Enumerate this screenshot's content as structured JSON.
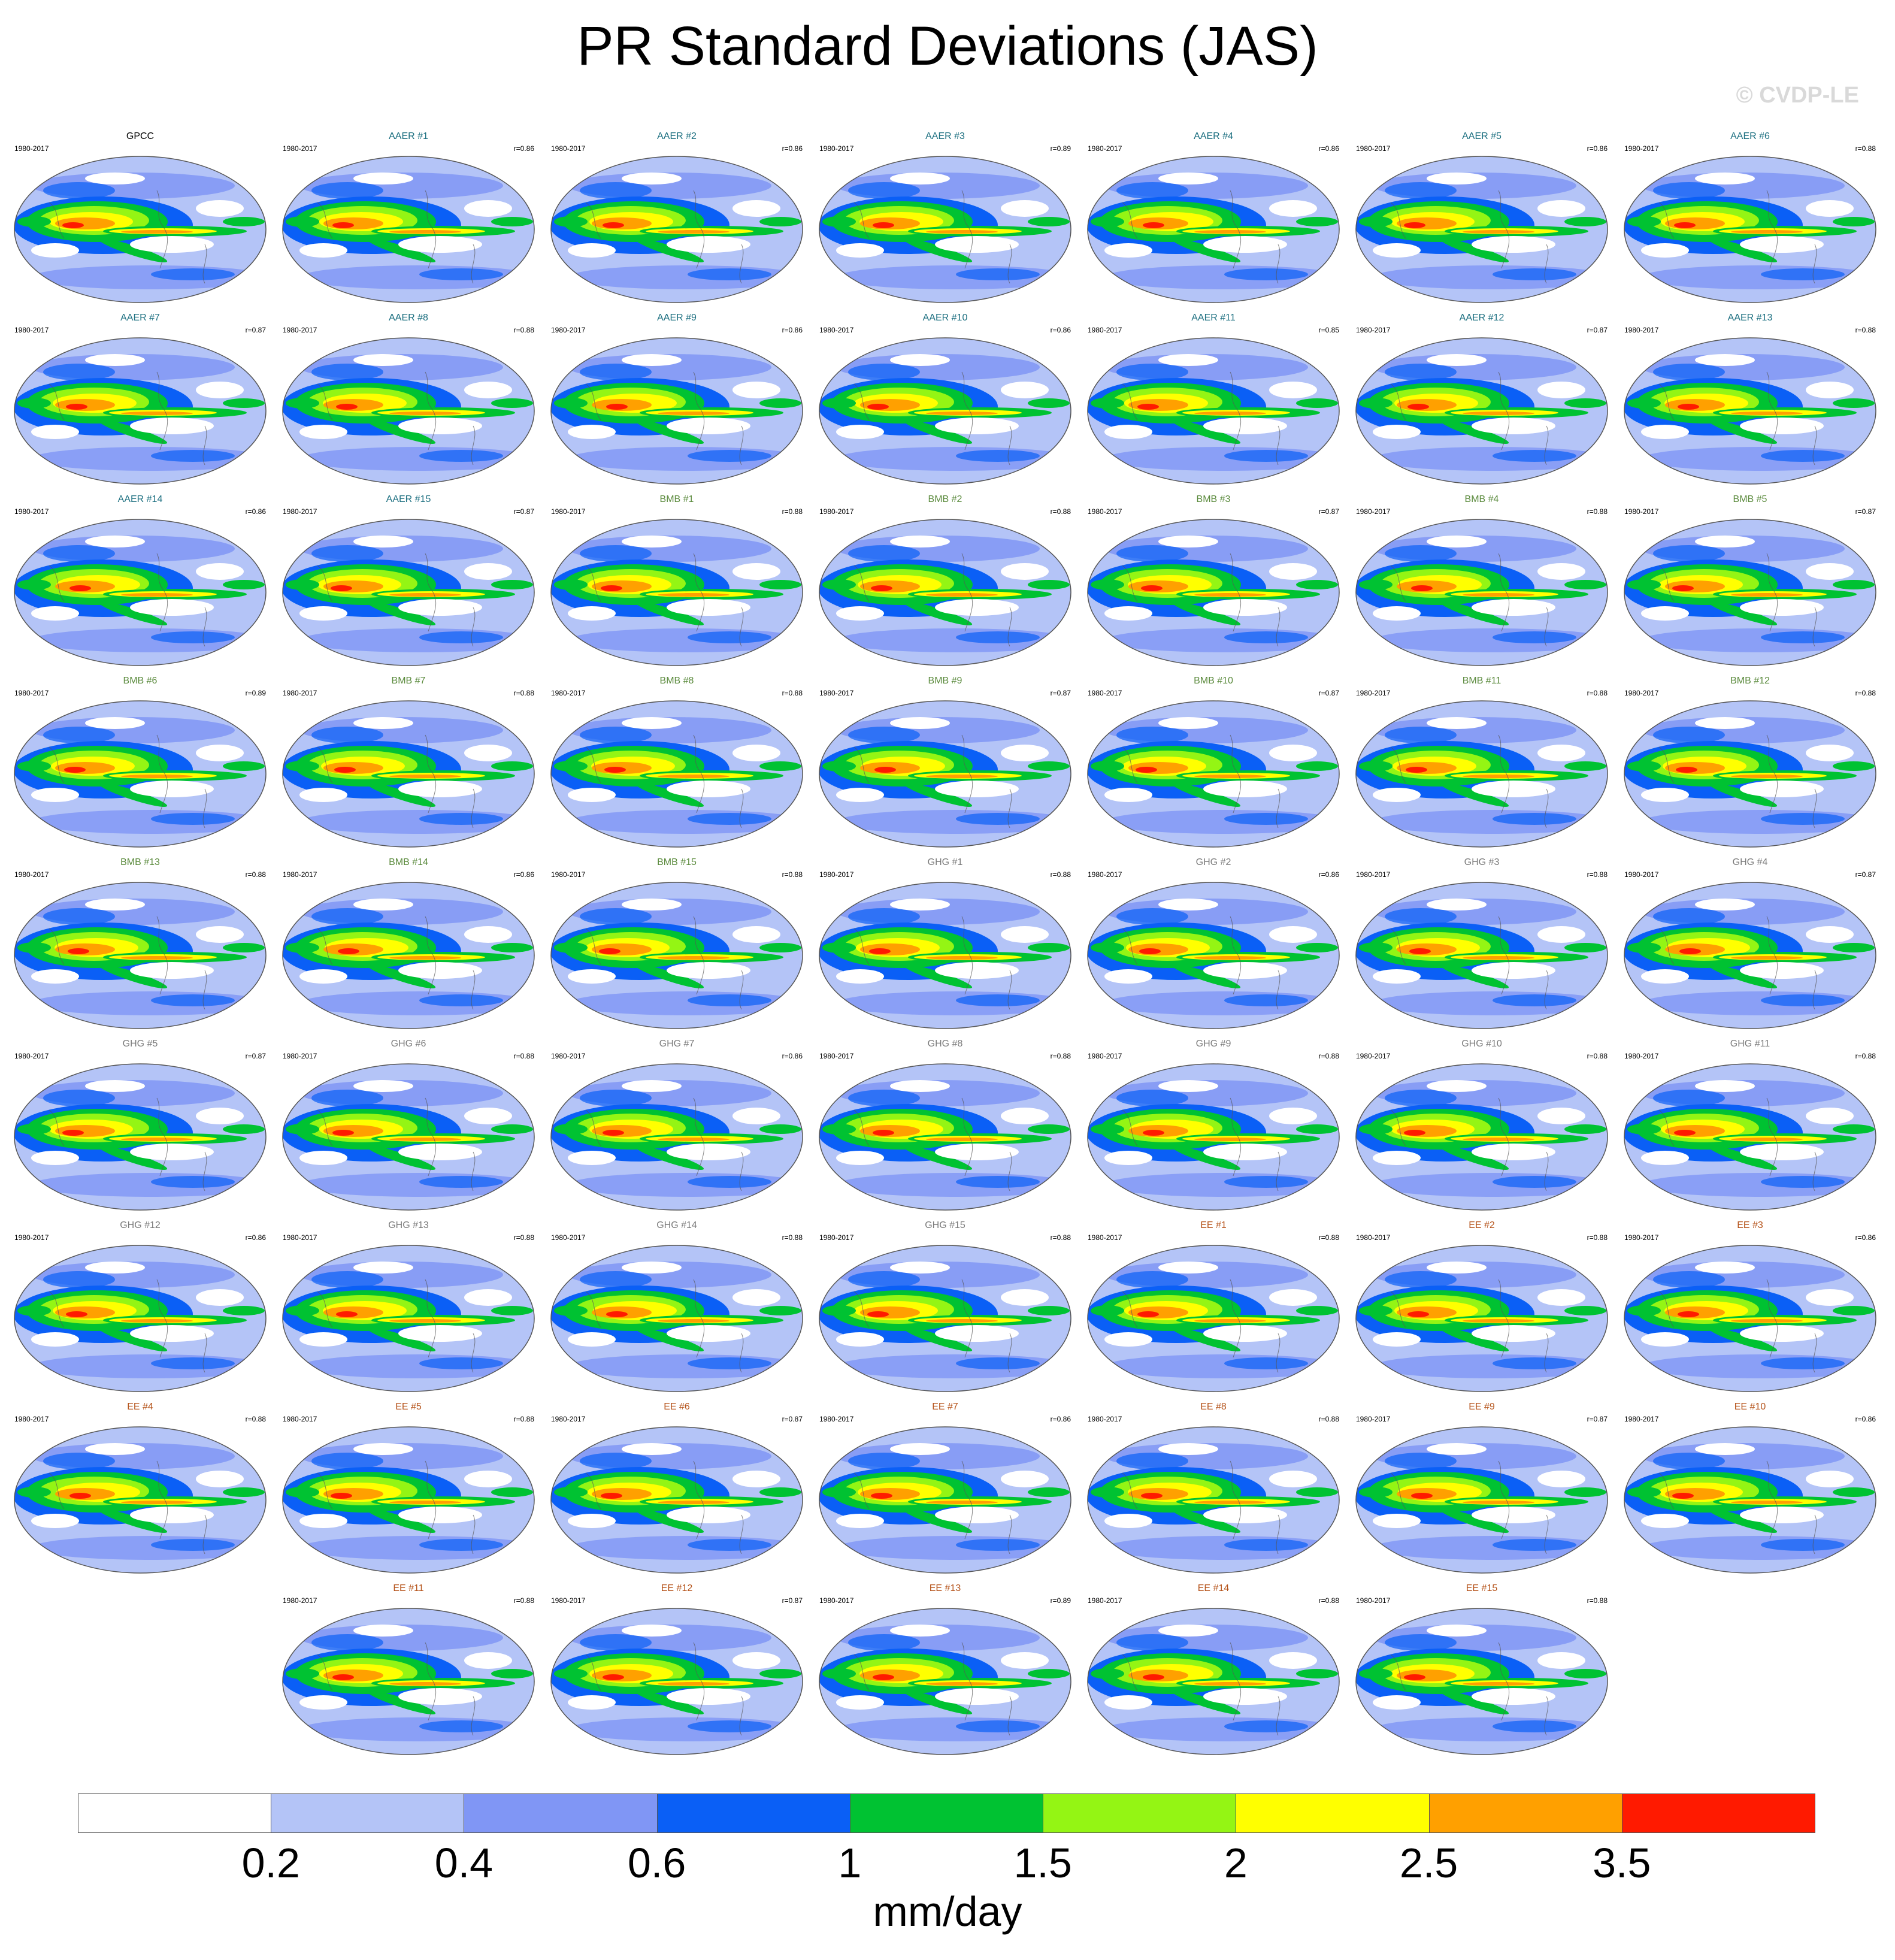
{
  "title": "PR Standard Deviations (JAS)",
  "credit": "© CVDP-LE",
  "units": "mm/day",
  "colorbar": {
    "colors": [
      "#ffffff",
      "#b4c4f7",
      "#8096f5",
      "#0a5ff6",
      "#00c232",
      "#94f514",
      "#ffff00",
      "#ffa000",
      "#ff1a00"
    ],
    "ticks": [
      "0.2",
      "0.4",
      "0.6",
      "1",
      "1.5",
      "2",
      "2.5",
      "3.5"
    ]
  },
  "group_colors": {
    "GPCC": "#000000",
    "AAER": "#1c6f80",
    "BMB": "#5a8a3c",
    "GHG": "#7b7b7b",
    "EE": "#b5531a"
  },
  "panels": [
    {
      "label": "GPCC",
      "group": "GPCC",
      "years": "1980-2017",
      "r": ""
    },
    {
      "label": "AAER #1",
      "group": "AAER",
      "years": "1980-2017",
      "r": "r=0.86"
    },
    {
      "label": "AAER #2",
      "group": "AAER",
      "years": "1980-2017",
      "r": "r=0.86"
    },
    {
      "label": "AAER #3",
      "group": "AAER",
      "years": "1980-2017",
      "r": "r=0.89"
    },
    {
      "label": "AAER #4",
      "group": "AAER",
      "years": "1980-2017",
      "r": "r=0.86"
    },
    {
      "label": "AAER #5",
      "group": "AAER",
      "years": "1980-2017",
      "r": "r=0.86"
    },
    {
      "label": "AAER #6",
      "group": "AAER",
      "years": "1980-2017",
      "r": "r=0.88"
    },
    {
      "label": "AAER #7",
      "group": "AAER",
      "years": "1980-2017",
      "r": "r=0.87"
    },
    {
      "label": "AAER #8",
      "group": "AAER",
      "years": "1980-2017",
      "r": "r=0.88"
    },
    {
      "label": "AAER #9",
      "group": "AAER",
      "years": "1980-2017",
      "r": "r=0.86"
    },
    {
      "label": "AAER #10",
      "group": "AAER",
      "years": "1980-2017",
      "r": "r=0.86"
    },
    {
      "label": "AAER #11",
      "group": "AAER",
      "years": "1980-2017",
      "r": "r=0.85"
    },
    {
      "label": "AAER #12",
      "group": "AAER",
      "years": "1980-2017",
      "r": "r=0.87"
    },
    {
      "label": "AAER #13",
      "group": "AAER",
      "years": "1980-2017",
      "r": "r=0.88"
    },
    {
      "label": "AAER #14",
      "group": "AAER",
      "years": "1980-2017",
      "r": "r=0.86"
    },
    {
      "label": "AAER #15",
      "group": "AAER",
      "years": "1980-2017",
      "r": "r=0.87"
    },
    {
      "label": "BMB #1",
      "group": "BMB",
      "years": "1980-2017",
      "r": "r=0.88"
    },
    {
      "label": "BMB #2",
      "group": "BMB",
      "years": "1980-2017",
      "r": "r=0.88"
    },
    {
      "label": "BMB #3",
      "group": "BMB",
      "years": "1980-2017",
      "r": "r=0.87"
    },
    {
      "label": "BMB #4",
      "group": "BMB",
      "years": "1980-2017",
      "r": "r=0.88"
    },
    {
      "label": "BMB #5",
      "group": "BMB",
      "years": "1980-2017",
      "r": "r=0.87"
    },
    {
      "label": "BMB #6",
      "group": "BMB",
      "years": "1980-2017",
      "r": "r=0.89"
    },
    {
      "label": "BMB #7",
      "group": "BMB",
      "years": "1980-2017",
      "r": "r=0.88"
    },
    {
      "label": "BMB #8",
      "group": "BMB",
      "years": "1980-2017",
      "r": "r=0.88"
    },
    {
      "label": "BMB #9",
      "group": "BMB",
      "years": "1980-2017",
      "r": "r=0.87"
    },
    {
      "label": "BMB #10",
      "group": "BMB",
      "years": "1980-2017",
      "r": "r=0.87"
    },
    {
      "label": "BMB #11",
      "group": "BMB",
      "years": "1980-2017",
      "r": "r=0.88"
    },
    {
      "label": "BMB #12",
      "group": "BMB",
      "years": "1980-2017",
      "r": "r=0.88"
    },
    {
      "label": "BMB #13",
      "group": "BMB",
      "years": "1980-2017",
      "r": "r=0.88"
    },
    {
      "label": "BMB #14",
      "group": "BMB",
      "years": "1980-2017",
      "r": "r=0.86"
    },
    {
      "label": "BMB #15",
      "group": "BMB",
      "years": "1980-2017",
      "r": "r=0.88"
    },
    {
      "label": "GHG #1",
      "group": "GHG",
      "years": "1980-2017",
      "r": "r=0.88"
    },
    {
      "label": "GHG #2",
      "group": "GHG",
      "years": "1980-2017",
      "r": "r=0.86"
    },
    {
      "label": "GHG #3",
      "group": "GHG",
      "years": "1980-2017",
      "r": "r=0.88"
    },
    {
      "label": "GHG #4",
      "group": "GHG",
      "years": "1980-2017",
      "r": "r=0.87"
    },
    {
      "label": "GHG #5",
      "group": "GHG",
      "years": "1980-2017",
      "r": "r=0.87"
    },
    {
      "label": "GHG #6",
      "group": "GHG",
      "years": "1980-2017",
      "r": "r=0.88"
    },
    {
      "label": "GHG #7",
      "group": "GHG",
      "years": "1980-2017",
      "r": "r=0.86"
    },
    {
      "label": "GHG #8",
      "group": "GHG",
      "years": "1980-2017",
      "r": "r=0.88"
    },
    {
      "label": "GHG #9",
      "group": "GHG",
      "years": "1980-2017",
      "r": "r=0.88"
    },
    {
      "label": "GHG #10",
      "group": "GHG",
      "years": "1980-2017",
      "r": "r=0.88"
    },
    {
      "label": "GHG #11",
      "group": "GHG",
      "years": "1980-2017",
      "r": "r=0.88"
    },
    {
      "label": "GHG #12",
      "group": "GHG",
      "years": "1980-2017",
      "r": "r=0.86"
    },
    {
      "label": "GHG #13",
      "group": "GHG",
      "years": "1980-2017",
      "r": "r=0.88"
    },
    {
      "label": "GHG #14",
      "group": "GHG",
      "years": "1980-2017",
      "r": "r=0.88"
    },
    {
      "label": "GHG #15",
      "group": "GHG",
      "years": "1980-2017",
      "r": "r=0.88"
    },
    {
      "label": "EE #1",
      "group": "EE",
      "years": "1980-2017",
      "r": "r=0.88"
    },
    {
      "label": "EE #2",
      "group": "EE",
      "years": "1980-2017",
      "r": "r=0.88"
    },
    {
      "label": "EE #3",
      "group": "EE",
      "years": "1980-2017",
      "r": "r=0.86"
    },
    {
      "label": "EE #4",
      "group": "EE",
      "years": "1980-2017",
      "r": "r=0.88"
    },
    {
      "label": "EE #5",
      "group": "EE",
      "years": "1980-2017",
      "r": "r=0.88"
    },
    {
      "label": "EE #6",
      "group": "EE",
      "years": "1980-2017",
      "r": "r=0.87"
    },
    {
      "label": "EE #7",
      "group": "EE",
      "years": "1980-2017",
      "r": "r=0.86"
    },
    {
      "label": "EE #8",
      "group": "EE",
      "years": "1980-2017",
      "r": "r=0.88"
    },
    {
      "label": "EE #9",
      "group": "EE",
      "years": "1980-2017",
      "r": "r=0.87"
    },
    {
      "label": "EE #10",
      "group": "EE",
      "years": "1980-2017",
      "r": "r=0.86"
    },
    {
      "label": "EE #11",
      "group": "EE",
      "years": "1980-2017",
      "r": "r=0.88"
    },
    {
      "label": "EE #12",
      "group": "EE",
      "years": "1980-2017",
      "r": "r=0.87"
    },
    {
      "label": "EE #13",
      "group": "EE",
      "years": "1980-2017",
      "r": "r=0.89"
    },
    {
      "label": "EE #14",
      "group": "EE",
      "years": "1980-2017",
      "r": "r=0.88"
    },
    {
      "label": "EE #15",
      "group": "EE",
      "years": "1980-2017",
      "r": "r=0.88"
    }
  ]
}
